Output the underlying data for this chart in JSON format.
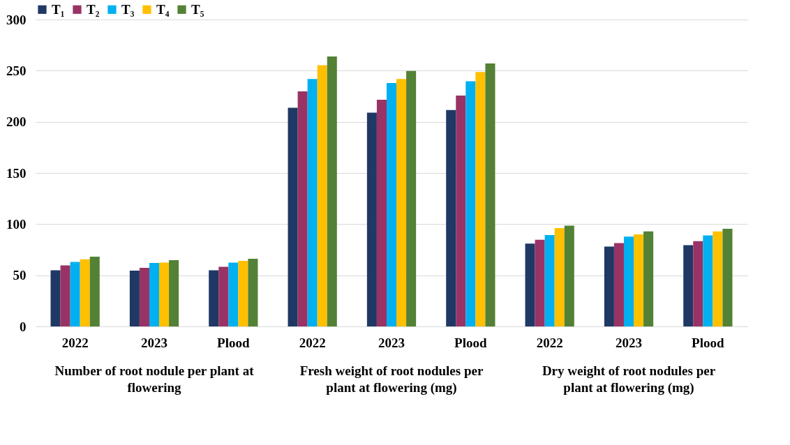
{
  "chart_data": {
    "type": "bar",
    "categories": [
      "2022",
      "2023",
      "Plood",
      "2022",
      "2023",
      "Plood",
      "2022",
      "2023",
      "Plood"
    ],
    "series": [
      {
        "name": "T₁",
        "color": "#203864",
        "values": [
          54.9,
          54.5,
          54.9,
          213.7,
          209,
          211.5,
          81,
          78,
          79.5
        ]
      },
      {
        "name": "T₂",
        "color": "#993366",
        "values": [
          59.6,
          57.3,
          58.3,
          229.7,
          221.6,
          225.6,
          84.8,
          81.4,
          83.3
        ]
      },
      {
        "name": "T₃",
        "color": "#00b0f0",
        "values": [
          63,
          62,
          62.4,
          241.9,
          238,
          239.7,
          89.3,
          87.8,
          88.9
        ]
      },
      {
        "name": "T₄",
        "color": "#ffc000",
        "values": [
          65.6,
          62.4,
          64.1,
          255.3,
          241.9,
          248.7,
          96.2,
          90,
          92.9
        ]
      },
      {
        "name": "T₅",
        "color": "#538135",
        "values": [
          68.2,
          64.7,
          66.2,
          263.9,
          249.8,
          257,
          98.5,
          92.9,
          95.5
        ]
      }
    ],
    "ylim": [
      0,
      300
    ],
    "yticks": [
      0,
      50,
      100,
      150,
      200,
      250,
      300
    ],
    "grid": "y",
    "legend": "top",
    "annotations": [
      "Number of root nodule per plant at flowering",
      "Fresh weight of root nodules per plant at flowering (mg)",
      "Dry weight of root nodules per plant at flowering (mg)"
    ]
  }
}
